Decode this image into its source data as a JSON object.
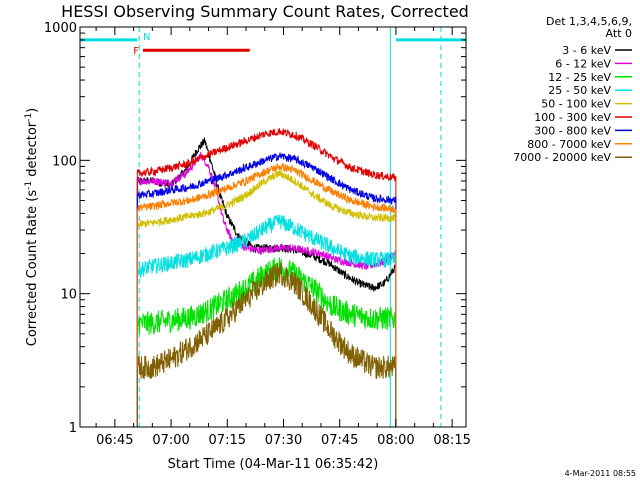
{
  "chart_data": {
    "type": "line",
    "title": "HESSI Observing Summary Count Rates, Corrected",
    "xlabel": "Start Time (04-Mar-11 06:35:42)",
    "ylabel_main": "Corrected Count Rate (s",
    "ylabel_sup1": "-1",
    "ylabel_mid": " detector",
    "ylabel_sup2": "-1",
    "ylabel_end": ")",
    "y_scale": "log",
    "ylim": [
      1,
      1000
    ],
    "xlim": [
      "06:35:42",
      "08:18:42"
    ],
    "x_ticks": [
      "06:45",
      "07:00",
      "07:15",
      "07:30",
      "07:45",
      "08:00",
      "08:15"
    ],
    "y_ticks": [
      "1",
      "10",
      "100",
      "1000"
    ],
    "legend_placement": "right",
    "legend_header": [
      "Det 1,3,4,5,6,9,",
      "Att 0"
    ],
    "legend": [
      {
        "name": "3 - 6 keV",
        "color": "#000000"
      },
      {
        "name": "6 - 12 keV",
        "color": "#e000e0"
      },
      {
        "name": "12 - 25 keV",
        "color": "#00e000"
      },
      {
        "name": "25 - 50 keV",
        "color": "#00e0e0"
      },
      {
        "name": "50 - 100 keV",
        "color": "#d0c000"
      },
      {
        "name": "100 - 300 keV",
        "color": "#e00000"
      },
      {
        "name": "300 - 800 keV",
        "color": "#0000e0"
      },
      {
        "name": "800 - 7000 keV",
        "color": "#ff8000"
      },
      {
        "name": "7000 - 20000 keV",
        "color": "#806000"
      }
    ],
    "data_start": "06:51:00",
    "data_end": "08:00:00",
    "series": [
      {
        "name": "3 - 6 keV",
        "color": "#000000",
        "x": [
          "06:51",
          "06:55",
          "07:00",
          "07:04",
          "07:07",
          "07:09",
          "07:11",
          "07:13",
          "07:15",
          "07:18",
          "07:22",
          "07:26",
          "07:30",
          "07:34",
          "07:38",
          "07:42",
          "07:46",
          "07:50",
          "07:54",
          "07:57",
          "08:00"
        ],
        "y": [
          70,
          70,
          65,
          85,
          120,
          140,
          90,
          55,
          38,
          27,
          22,
          22,
          22,
          21,
          19,
          17,
          14,
          12,
          11,
          12,
          16
        ]
      },
      {
        "name": "6 - 12 keV",
        "color": "#e000e0",
        "x": [
          "06:51",
          "06:55",
          "07:00",
          "07:04",
          "07:08",
          "07:10",
          "07:12",
          "07:14",
          "07:16",
          "07:20",
          "07:24",
          "07:28",
          "07:32",
          "07:36",
          "07:40",
          "07:44",
          "07:48",
          "07:52",
          "07:56",
          "08:00"
        ],
        "y": [
          70,
          70,
          68,
          80,
          110,
          90,
          60,
          35,
          26,
          22,
          21,
          22,
          22,
          21,
          20,
          18,
          17,
          16,
          17,
          20
        ]
      },
      {
        "name": "12 - 25 keV",
        "color": "#00e000",
        "x": [
          "06:51",
          "06:55",
          "07:00",
          "07:05",
          "07:10",
          "07:15",
          "07:20",
          "07:25",
          "07:29",
          "07:33",
          "07:38",
          "07:43",
          "07:48",
          "07:54",
          "08:00"
        ],
        "y": [
          6,
          6,
          6.3,
          6.6,
          7.5,
          9,
          11,
          14,
          16,
          14,
          11,
          8,
          7,
          6.5,
          6.5
        ]
      },
      {
        "name": "25 - 50 keV",
        "color": "#00e0e0",
        "x": [
          "06:51",
          "06:55",
          "07:00",
          "07:05",
          "07:10",
          "07:15",
          "07:20",
          "07:25",
          "07:29",
          "07:33",
          "07:38",
          "07:43",
          "07:48",
          "07:54",
          "08:00"
        ],
        "y": [
          15,
          16,
          17,
          18,
          20,
          22,
          25,
          31,
          35,
          31,
          26,
          22,
          19,
          18,
          18
        ]
      },
      {
        "name": "50 - 100 keV",
        "color": "#d0c000",
        "x": [
          "06:51",
          "06:55",
          "07:00",
          "07:05",
          "07:10",
          "07:15",
          "07:20",
          "07:25",
          "07:29",
          "07:33",
          "07:38",
          "07:43",
          "07:48",
          "07:54",
          "08:00"
        ],
        "y": [
          33,
          34,
          36,
          38,
          41,
          46,
          55,
          70,
          80,
          70,
          55,
          45,
          40,
          37,
          37
        ]
      },
      {
        "name": "100 - 300 keV",
        "color": "#e00000",
        "x": [
          "06:51",
          "06:55",
          "07:00",
          "07:05",
          "07:10",
          "07:15",
          "07:20",
          "07:25",
          "07:29",
          "07:33",
          "07:38",
          "07:43",
          "07:48",
          "07:54",
          "08:00"
        ],
        "y": [
          80,
          82,
          88,
          95,
          110,
          125,
          140,
          158,
          165,
          155,
          130,
          105,
          88,
          78,
          74
        ]
      },
      {
        "name": "300 - 800 keV",
        "color": "#0000e0",
        "x": [
          "06:51",
          "06:55",
          "07:00",
          "07:05",
          "07:10",
          "07:15",
          "07:20",
          "07:25",
          "07:29",
          "07:33",
          "07:38",
          "07:43",
          "07:48",
          "07:54",
          "08:00"
        ],
        "y": [
          55,
          56,
          60,
          63,
          70,
          78,
          88,
          100,
          108,
          102,
          88,
          72,
          60,
          52,
          50
        ]
      },
      {
        "name": "800 - 7000 keV",
        "color": "#ff8000",
        "x": [
          "06:51",
          "06:55",
          "07:00",
          "07:05",
          "07:10",
          "07:15",
          "07:20",
          "07:25",
          "07:29",
          "07:33",
          "07:38",
          "07:43",
          "07:48",
          "07:54",
          "08:00"
        ],
        "y": [
          44,
          45,
          48,
          50,
          55,
          62,
          70,
          82,
          90,
          84,
          70,
          58,
          50,
          45,
          43
        ]
      },
      {
        "name": "7000 - 20000 keV",
        "color": "#806000",
        "x": [
          "06:51",
          "06:55",
          "07:00",
          "07:05",
          "07:10",
          "07:15",
          "07:20",
          "07:25",
          "07:29",
          "07:33",
          "07:38",
          "07:43",
          "07:48",
          "07:54",
          "08:00"
        ],
        "y": [
          2.8,
          2.8,
          3.2,
          4,
          5,
          6.5,
          9,
          12,
          14.5,
          12,
          8,
          5,
          3.5,
          2.8,
          2.8
        ]
      }
    ],
    "orbit_markers": {
      "color": "#00e0e0",
      "night_levels": [
        {
          "from": "06:35:42",
          "to": "06:51:00",
          "y": 800
        },
        {
          "from": "08:00:00",
          "to": "08:18:42",
          "y": 800
        }
      ],
      "vertical_solid": [
        "06:35:42",
        "07:58:30"
      ],
      "vertical_dashed": [
        "06:51:30",
        "08:12:00"
      ],
      "label": "N",
      "label_at": "06:52:30"
    },
    "flare_flag": {
      "label": "F",
      "from": "06:52:30",
      "to": "07:21:00",
      "y": 670,
      "color": "#e00000"
    }
  },
  "footer_stamp": "4-Mar-2011 08:55"
}
